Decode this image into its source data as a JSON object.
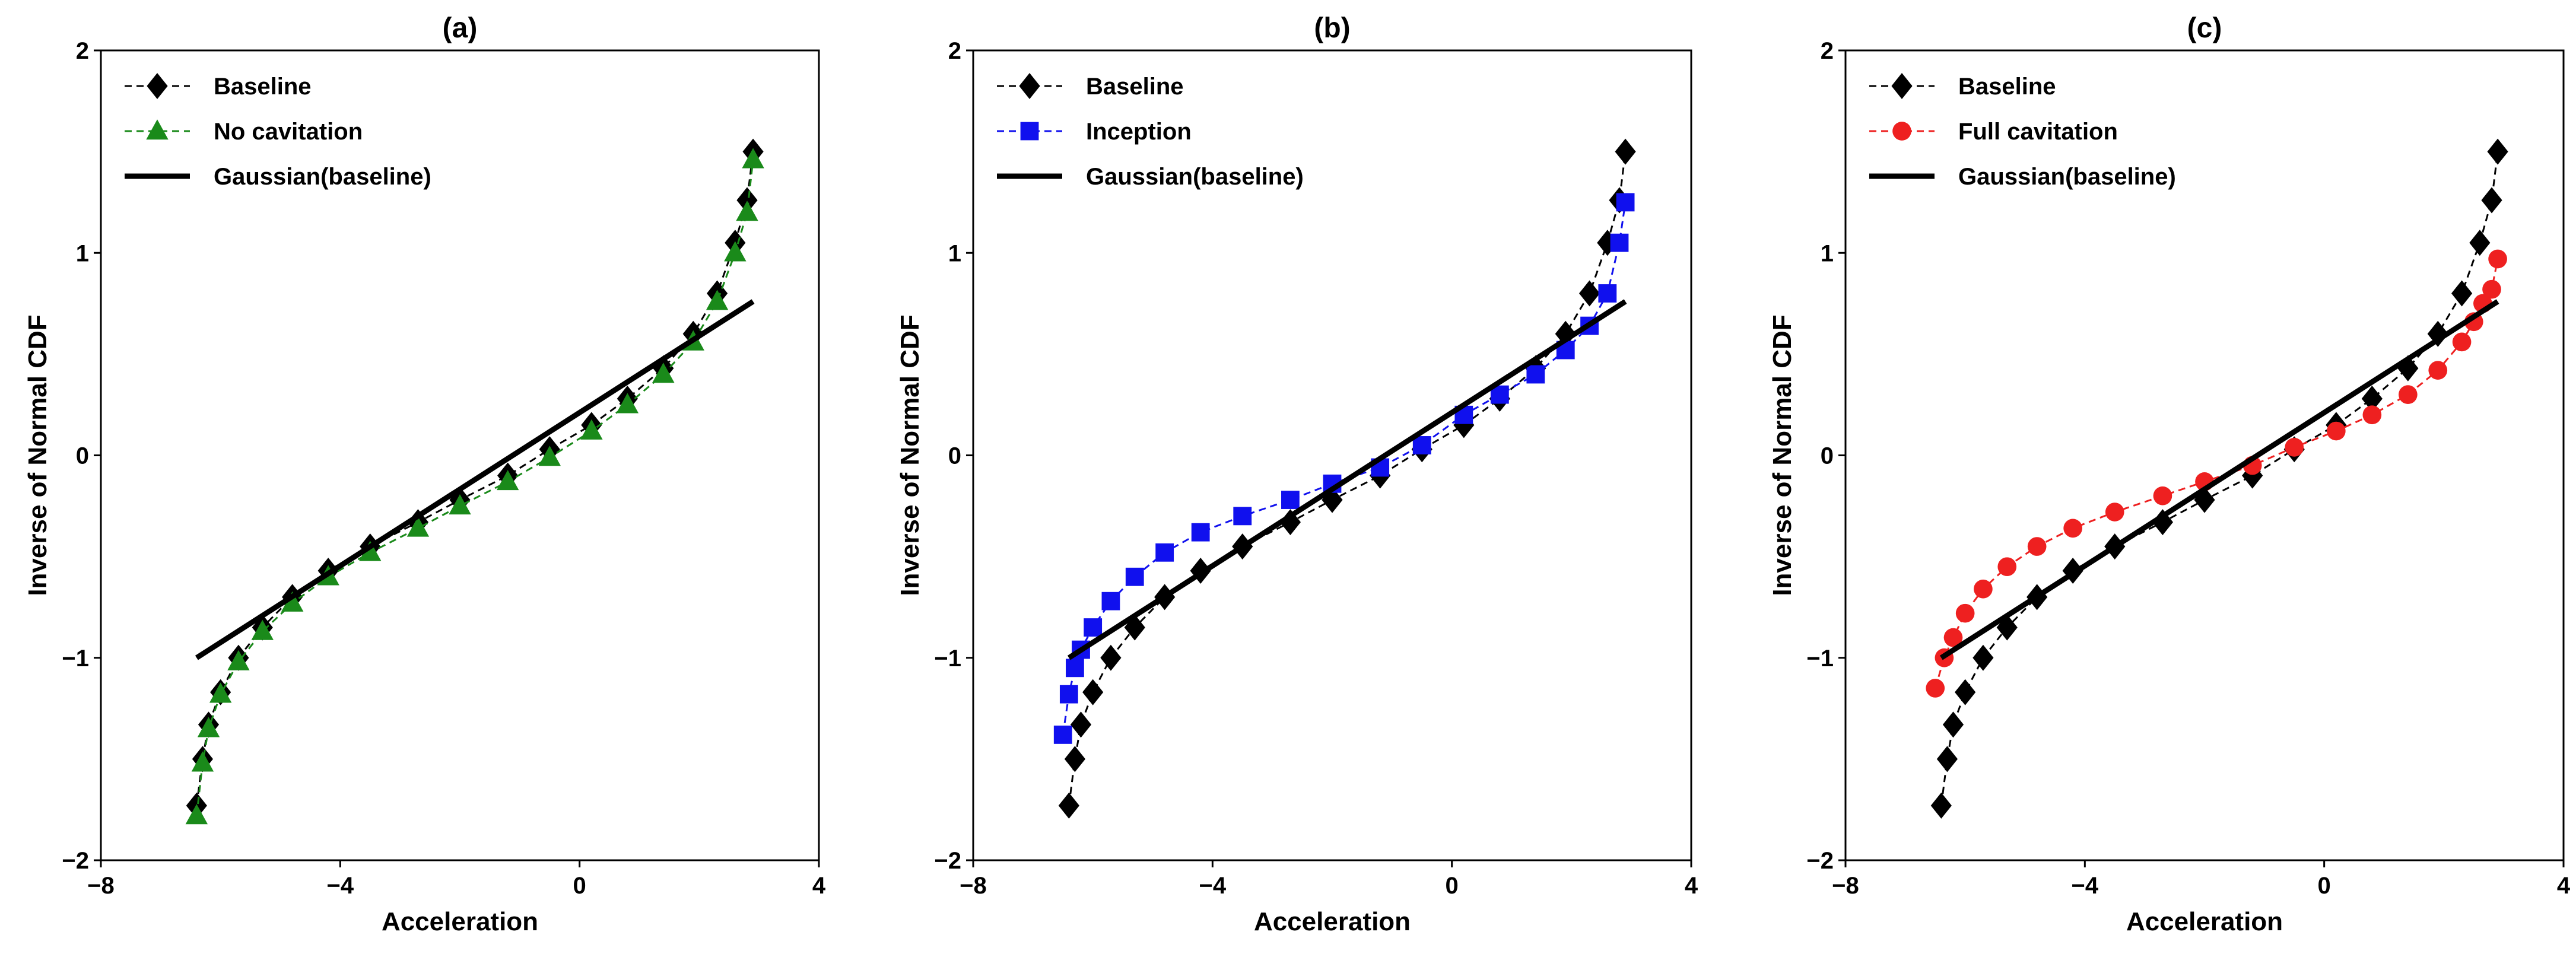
{
  "figure": {
    "xlabel": "Acceleration",
    "ylabel": "Inverse of Normal CDF"
  },
  "chart_data": [
    {
      "type": "line",
      "title": "(a)",
      "xlabel": "Acceleration",
      "ylabel": "Inverse of Normal CDF",
      "xlim": [
        -8,
        4
      ],
      "ylim": [
        -2,
        2
      ],
      "xticks": [
        -8,
        -4,
        0,
        4
      ],
      "yticks": [
        -2,
        -1,
        0,
        1,
        2
      ],
      "xtick_labels": [
        "−8",
        "−4",
        "0",
        "4"
      ],
      "ytick_labels": [
        "−2",
        "−1",
        "0",
        "1",
        "2"
      ],
      "legend_position": "top-left",
      "series": [
        {
          "name": "Baseline",
          "color": "#000000",
          "marker": "diamond",
          "linestyle": "dashed",
          "x": [
            -6.4,
            -6.3,
            -6.2,
            -6.0,
            -5.7,
            -5.3,
            -4.8,
            -4.2,
            -3.5,
            -2.7,
            -2.0,
            -1.2,
            -0.5,
            0.2,
            0.8,
            1.4,
            1.9,
            2.3,
            2.6,
            2.8,
            2.9
          ],
          "y": [
            -1.73,
            -1.5,
            -1.33,
            -1.17,
            -1.0,
            -0.85,
            -0.7,
            -0.57,
            -0.45,
            -0.33,
            -0.22,
            -0.1,
            0.03,
            0.15,
            0.28,
            0.43,
            0.6,
            0.8,
            1.05,
            1.26,
            1.5
          ]
        },
        {
          "name": "No cavitation",
          "color": "#1a8a1a",
          "marker": "triangle",
          "linestyle": "dashed",
          "x": [
            -6.4,
            -6.3,
            -6.2,
            -6.0,
            -5.7,
            -5.3,
            -4.8,
            -4.2,
            -3.5,
            -2.7,
            -2.0,
            -1.2,
            -0.5,
            0.2,
            0.8,
            1.4,
            1.9,
            2.3,
            2.6,
            2.8,
            2.9
          ],
          "y": [
            -1.78,
            -1.52,
            -1.35,
            -1.18,
            -1.02,
            -0.87,
            -0.73,
            -0.6,
            -0.48,
            -0.36,
            -0.25,
            -0.13,
            -0.01,
            0.12,
            0.25,
            0.4,
            0.56,
            0.76,
            1.0,
            1.2,
            1.46
          ]
        },
        {
          "name": "Gaussian(baseline)",
          "color": "#000000",
          "marker": "none",
          "linestyle": "solid",
          "x": [
            -6.4,
            2.9
          ],
          "y": [
            -1.0,
            0.76
          ]
        }
      ]
    },
    {
      "type": "line",
      "title": "(b)",
      "xlabel": "Acceleration",
      "ylabel": "Inverse of Normal CDF",
      "xlim": [
        -8,
        4
      ],
      "ylim": [
        -2,
        2
      ],
      "xticks": [
        -8,
        -4,
        0,
        4
      ],
      "yticks": [
        -2,
        -1,
        0,
        1,
        2
      ],
      "xtick_labels": [
        "−8",
        "−4",
        "0",
        "4"
      ],
      "ytick_labels": [
        "−2",
        "−1",
        "0",
        "1",
        "2"
      ],
      "legend_position": "top-left",
      "series": [
        {
          "name": "Baseline",
          "color": "#000000",
          "marker": "diamond",
          "linestyle": "dashed",
          "x": [
            -6.4,
            -6.3,
            -6.2,
            -6.0,
            -5.7,
            -5.3,
            -4.8,
            -4.2,
            -3.5,
            -2.7,
            -2.0,
            -1.2,
            -0.5,
            0.2,
            0.8,
            1.4,
            1.9,
            2.3,
            2.6,
            2.8,
            2.9
          ],
          "y": [
            -1.73,
            -1.5,
            -1.33,
            -1.17,
            -1.0,
            -0.85,
            -0.7,
            -0.57,
            -0.45,
            -0.33,
            -0.22,
            -0.1,
            0.03,
            0.15,
            0.28,
            0.43,
            0.6,
            0.8,
            1.05,
            1.26,
            1.5
          ]
        },
        {
          "name": "Inception",
          "color": "#1010ee",
          "marker": "square",
          "linestyle": "dashed",
          "x": [
            -6.5,
            -6.4,
            -6.3,
            -6.2,
            -6.0,
            -5.7,
            -5.3,
            -4.8,
            -4.2,
            -3.5,
            -2.7,
            -2.0,
            -1.2,
            -0.5,
            0.2,
            0.8,
            1.4,
            1.9,
            2.3,
            2.6,
            2.8,
            2.9
          ],
          "y": [
            -1.38,
            -1.18,
            -1.05,
            -0.96,
            -0.85,
            -0.72,
            -0.6,
            -0.48,
            -0.38,
            -0.3,
            -0.22,
            -0.14,
            -0.06,
            0.05,
            0.2,
            0.3,
            0.4,
            0.52,
            0.64,
            0.8,
            1.05,
            1.25
          ]
        },
        {
          "name": "Gaussian(baseline)",
          "color": "#000000",
          "marker": "none",
          "linestyle": "solid",
          "x": [
            -6.4,
            2.9
          ],
          "y": [
            -1.0,
            0.76
          ]
        }
      ]
    },
    {
      "type": "line",
      "title": "(c)",
      "xlabel": "Acceleration",
      "ylabel": "Inverse of Normal CDF",
      "xlim": [
        -8,
        4
      ],
      "ylim": [
        -2,
        2
      ],
      "xticks": [
        -8,
        -4,
        0,
        4
      ],
      "yticks": [
        -2,
        -1,
        0,
        1,
        2
      ],
      "xtick_labels": [
        "−8",
        "−4",
        "0",
        "4"
      ],
      "ytick_labels": [
        "−2",
        "−1",
        "0",
        "1",
        "2"
      ],
      "legend_position": "top-left",
      "series": [
        {
          "name": "Baseline",
          "color": "#000000",
          "marker": "diamond",
          "linestyle": "dashed",
          "x": [
            -6.4,
            -6.3,
            -6.2,
            -6.0,
            -5.7,
            -5.3,
            -4.8,
            -4.2,
            -3.5,
            -2.7,
            -2.0,
            -1.2,
            -0.5,
            0.2,
            0.8,
            1.4,
            1.9,
            2.3,
            2.6,
            2.8,
            2.9
          ],
          "y": [
            -1.73,
            -1.5,
            -1.33,
            -1.17,
            -1.0,
            -0.85,
            -0.7,
            -0.57,
            -0.45,
            -0.33,
            -0.22,
            -0.1,
            0.03,
            0.15,
            0.28,
            0.43,
            0.6,
            0.8,
            1.05,
            1.26,
            1.5
          ]
        },
        {
          "name": "Full cavitation",
          "color": "#ee2020",
          "marker": "circle",
          "linestyle": "dashed",
          "x": [
            -6.5,
            -6.35,
            -6.2,
            -6.0,
            -5.7,
            -5.3,
            -4.8,
            -4.2,
            -3.5,
            -2.7,
            -2.0,
            -1.2,
            -0.5,
            0.2,
            0.8,
            1.4,
            1.9,
            2.3,
            2.5,
            2.65,
            2.8,
            2.9
          ],
          "y": [
            -1.15,
            -1.0,
            -0.9,
            -0.78,
            -0.66,
            -0.55,
            -0.45,
            -0.36,
            -0.28,
            -0.2,
            -0.13,
            -0.05,
            0.04,
            0.12,
            0.2,
            0.3,
            0.42,
            0.56,
            0.66,
            0.75,
            0.82,
            0.97
          ]
        },
        {
          "name": "Gaussian(baseline)",
          "color": "#000000",
          "marker": "none",
          "linestyle": "solid",
          "x": [
            -6.4,
            2.9
          ],
          "y": [
            -1.0,
            0.76
          ]
        }
      ]
    }
  ]
}
